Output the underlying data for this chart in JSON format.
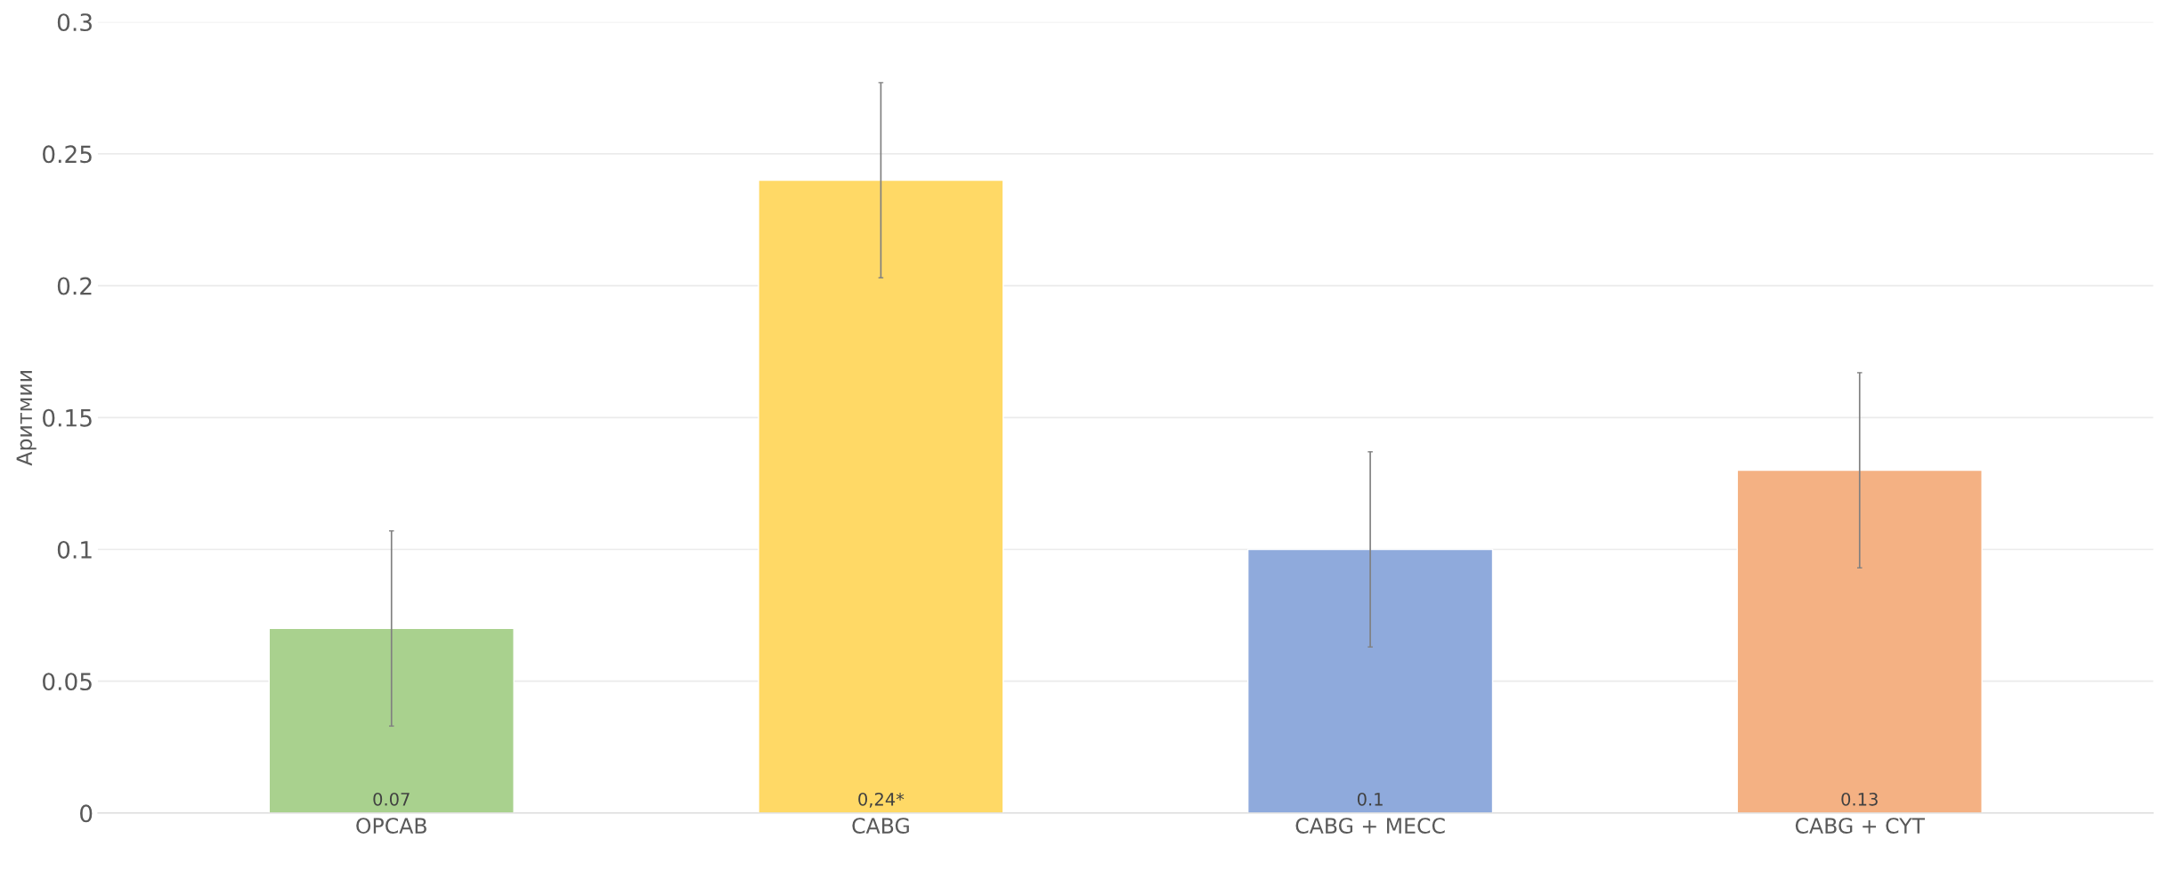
{
  "chart_data": {
    "type": "bar",
    "ylabel": "Аритмии",
    "categories": [
      "OPCAB",
      "CABG",
      "CABG + MECC",
      "CABG + CYT"
    ],
    "values": [
      0.07,
      0.24,
      0.1,
      0.13
    ],
    "colors": [
      "#a9d18e",
      "#ffd966",
      "#8faadc",
      "#f4b183"
    ],
    "errors": [
      0.037,
      0.037,
      0.037,
      0.037
    ],
    "value_labels": [
      "0.07",
      "0,24*",
      "0.1",
      "0.13"
    ],
    "ylim": [
      0,
      0.3
    ],
    "yticks": [
      {
        "value": 0,
        "label": "0"
      },
      0.05,
      0.1,
      0.15,
      0.2,
      0.25,
      0.3
    ],
    "grid": "y"
  }
}
